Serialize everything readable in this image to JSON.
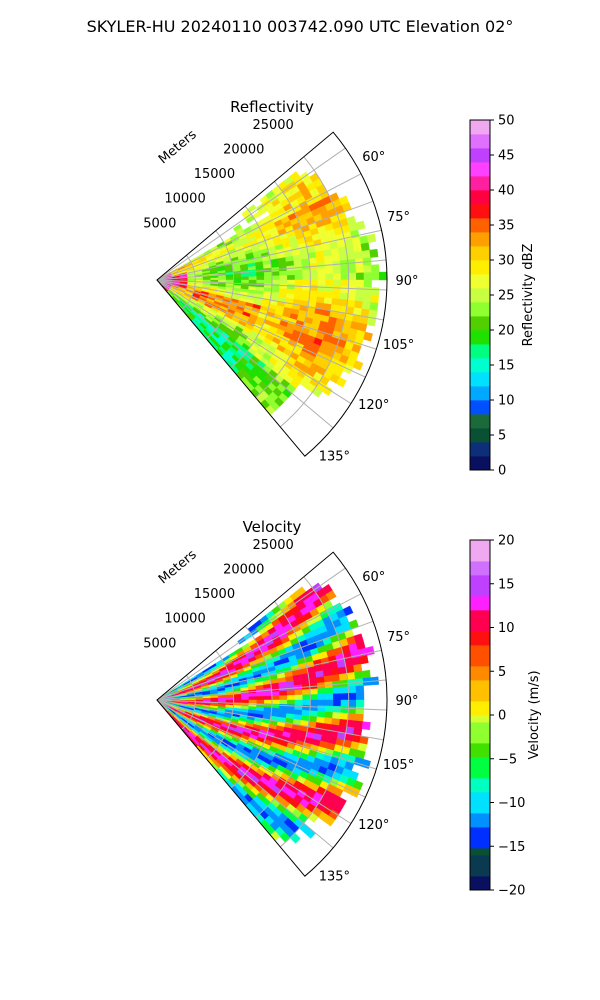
{
  "suptitle": "SKYLER-HU  20240110  003742.090 UTC Elevation 02°",
  "chart_data": [
    {
      "type": "heatmap",
      "projection": "polar-sector",
      "title": "Reflectivity",
      "radial_label": "Meters",
      "radial_ticks": [
        "5000",
        "10000",
        "15000",
        "20000",
        "25000"
      ],
      "radial_tick_values": [
        5000,
        10000,
        15000,
        20000,
        25000
      ],
      "r_max": 30000,
      "azimuth_range_deg": [
        50,
        140
      ],
      "azimuth_ticks": [
        "60°",
        "75°",
        "90°",
        "105°",
        "120°",
        "135°"
      ],
      "azimuth_tick_values": [
        60,
        75,
        90,
        105,
        120,
        135
      ],
      "colorbar": {
        "label": "Reflectivity dBZ",
        "ticks": [
          "0",
          "5",
          "10",
          "15",
          "20",
          "25",
          "30",
          "35",
          "40",
          "45",
          "50"
        ],
        "range": [
          0,
          50
        ]
      },
      "data_description": "Weak to moderate echoes ~20-35 dBZ across the sector, strongest (>35 dBZ) near the radar"
    },
    {
      "type": "heatmap",
      "projection": "polar-sector",
      "title": "Velocity",
      "radial_label": "Meters",
      "radial_ticks": [
        "5000",
        "10000",
        "15000",
        "20000",
        "25000"
      ],
      "radial_tick_values": [
        5000,
        10000,
        15000,
        20000,
        25000
      ],
      "r_max": 30000,
      "azimuth_range_deg": [
        50,
        140
      ],
      "azimuth_ticks": [
        "60°",
        "75°",
        "90°",
        "105°",
        "120°",
        "135°"
      ],
      "azimuth_tick_values": [
        60,
        75,
        90,
        105,
        120,
        135
      ],
      "colorbar": {
        "label": "Velocity (m/s)",
        "ticks": [
          "−20",
          "−15",
          "−10",
          "−5",
          "0",
          "5",
          "10",
          "15",
          "20"
        ],
        "range": [
          -20,
          20
        ]
      },
      "data_description": "Banded radial velocity pattern from about -15 to +15 m/s"
    }
  ]
}
